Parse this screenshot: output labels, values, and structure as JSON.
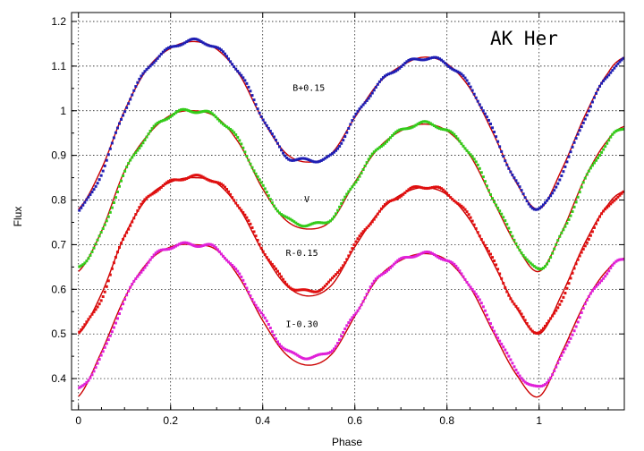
{
  "chart_data": {
    "type": "scatter",
    "title": "AK Her",
    "xlabel": "Phase",
    "ylabel": "Flux",
    "xlim": [
      -0.015,
      1.185
    ],
    "ylim": [
      0.33,
      1.22
    ],
    "x_ticks": [
      "0",
      "0.2",
      "0.4",
      "0.6",
      "0.8",
      "1"
    ],
    "x_tick_values": [
      0,
      0.2,
      0.4,
      0.6,
      0.8,
      1.0
    ],
    "y_ticks": [
      "0.4",
      "0.5",
      "0.6",
      "0.7",
      "0.8",
      "0.9",
      "1",
      "1.1",
      "1.2"
    ],
    "y_tick_values": [
      0.4,
      0.5,
      0.6,
      0.7,
      0.8,
      0.9,
      1.0,
      1.1,
      1.2
    ],
    "grid": true,
    "fit_color": "#cc0000",
    "series": [
      {
        "name": "B+0.15",
        "color": "#1f1fb4",
        "label_x": 0.465,
        "label_y": 1.045,
        "x": [
          0.0,
          0.05,
          0.1,
          0.15,
          0.2,
          0.25,
          0.3,
          0.35,
          0.4,
          0.45,
          0.5,
          0.55,
          0.6,
          0.65,
          0.7,
          0.75,
          0.8,
          0.85,
          0.9,
          0.95,
          1.0,
          1.05,
          1.1,
          1.15,
          1.185
        ],
        "obs": [
          0.775,
          0.86,
          1.0,
          1.095,
          1.14,
          1.157,
          1.14,
          1.085,
          0.985,
          0.9,
          0.89,
          0.9,
          0.985,
          1.058,
          1.1,
          1.118,
          1.105,
          1.055,
          0.955,
          0.84,
          0.78,
          0.86,
          0.985,
          1.08,
          1.115
        ],
        "fit": [
          0.78,
          0.87,
          1.0,
          1.095,
          1.14,
          1.155,
          1.138,
          1.08,
          0.98,
          0.905,
          0.885,
          0.905,
          0.985,
          1.06,
          1.1,
          1.12,
          1.105,
          1.05,
          0.95,
          0.84,
          0.78,
          0.87,
          0.99,
          1.085,
          1.12
        ]
      },
      {
        "name": "V",
        "color": "#33cc1a",
        "label_x": 0.49,
        "label_y": 0.795,
        "x": [
          0.0,
          0.05,
          0.1,
          0.15,
          0.2,
          0.25,
          0.3,
          0.35,
          0.4,
          0.45,
          0.5,
          0.55,
          0.6,
          0.65,
          0.7,
          0.75,
          0.8,
          0.85,
          0.9,
          0.95,
          1.0,
          1.05,
          1.1,
          1.15,
          1.185
        ],
        "obs": [
          0.648,
          0.725,
          0.86,
          0.945,
          0.99,
          1.0,
          0.985,
          0.93,
          0.83,
          0.76,
          0.745,
          0.76,
          0.84,
          0.915,
          0.955,
          0.972,
          0.955,
          0.905,
          0.805,
          0.705,
          0.645,
          0.725,
          0.845,
          0.93,
          0.962
        ],
        "fit": [
          0.64,
          0.73,
          0.865,
          0.945,
          0.99,
          1.0,
          0.985,
          0.925,
          0.825,
          0.755,
          0.735,
          0.755,
          0.84,
          0.915,
          0.955,
          0.97,
          0.955,
          0.9,
          0.8,
          0.7,
          0.64,
          0.73,
          0.85,
          0.935,
          0.965
        ]
      },
      {
        "name": "R-0.15",
        "color": "#e01010",
        "label_x": 0.45,
        "label_y": 0.675,
        "x": [
          0.0,
          0.05,
          0.1,
          0.15,
          0.2,
          0.25,
          0.3,
          0.35,
          0.4,
          0.45,
          0.5,
          0.55,
          0.6,
          0.65,
          0.7,
          0.75,
          0.8,
          0.85,
          0.9,
          0.95,
          1.0,
          1.05,
          1.1,
          1.15,
          1.185
        ],
        "obs": [
          0.505,
          0.58,
          0.72,
          0.805,
          0.84,
          0.852,
          0.84,
          0.785,
          0.69,
          0.615,
          0.595,
          0.62,
          0.7,
          0.77,
          0.812,
          0.83,
          0.815,
          0.76,
          0.665,
          0.56,
          0.505,
          0.58,
          0.7,
          0.785,
          0.818
        ],
        "fit": [
          0.5,
          0.59,
          0.72,
          0.805,
          0.84,
          0.85,
          0.838,
          0.78,
          0.685,
          0.61,
          0.585,
          0.61,
          0.695,
          0.77,
          0.812,
          0.828,
          0.812,
          0.755,
          0.66,
          0.56,
          0.5,
          0.59,
          0.705,
          0.79,
          0.82
        ]
      },
      {
        "name": "I-0.30",
        "color": "#e020d8",
        "label_x": 0.45,
        "label_y": 0.515,
        "x": [
          0.0,
          0.05,
          0.1,
          0.15,
          0.2,
          0.25,
          0.3,
          0.35,
          0.4,
          0.45,
          0.5,
          0.55,
          0.6,
          0.65,
          0.7,
          0.75,
          0.8,
          0.85,
          0.9,
          0.95,
          1.0,
          1.05,
          1.1,
          1.15,
          1.185
        ],
        "obs": [
          0.375,
          0.45,
          0.575,
          0.66,
          0.695,
          0.7,
          0.69,
          0.63,
          0.54,
          0.465,
          0.448,
          0.465,
          0.545,
          0.625,
          0.665,
          0.68,
          0.665,
          0.61,
          0.515,
          0.42,
          0.38,
          0.45,
          0.565,
          0.64,
          0.668
        ],
        "fit": [
          0.36,
          0.46,
          0.58,
          0.66,
          0.695,
          0.7,
          0.688,
          0.625,
          0.53,
          0.455,
          0.43,
          0.455,
          0.54,
          0.625,
          0.665,
          0.68,
          0.665,
          0.605,
          0.505,
          0.41,
          0.36,
          0.46,
          0.57,
          0.645,
          0.67
        ]
      }
    ]
  }
}
